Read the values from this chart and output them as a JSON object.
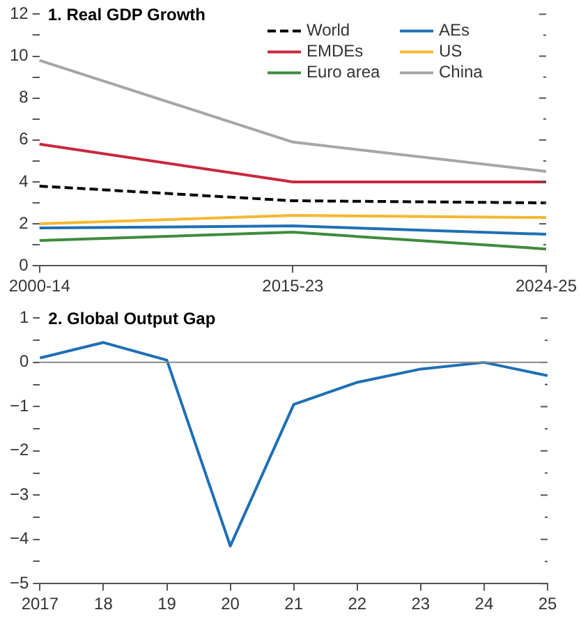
{
  "chart_data": [
    {
      "type": "line",
      "title": "1. Real GDP Growth",
      "categories": [
        "2000-14",
        "2015-23",
        "2024-25"
      ],
      "series": [
        {
          "name": "World",
          "color": "#000000",
          "line_style": "dashed",
          "values": [
            3.8,
            3.1,
            3.0
          ]
        },
        {
          "name": "AEs",
          "color": "#1f6fb5",
          "values": [
            1.8,
            1.9,
            1.5
          ]
        },
        {
          "name": "EMDEs",
          "color": "#c8283c",
          "values": [
            5.8,
            4.0,
            4.0
          ]
        },
        {
          "name": "US",
          "color": "#f5b731",
          "values": [
            2.0,
            2.4,
            2.3
          ]
        },
        {
          "name": "Euro area",
          "color": "#3d8b3d",
          "values": [
            1.2,
            1.6,
            0.8
          ]
        },
        {
          "name": "China",
          "color": "#a6a6a6",
          "values": [
            9.8,
            5.9,
            4.5
          ]
        }
      ],
      "ylim": [
        0,
        12
      ],
      "yticks": [
        0,
        {
          "value": 1,
          "label": null
        },
        2,
        {
          "value": 3,
          "label": null
        },
        4,
        {
          "value": 5,
          "label": null
        },
        6,
        {
          "value": 7,
          "label": null
        },
        8,
        {
          "value": 9,
          "label": null
        },
        10,
        {
          "value": 11,
          "label": null
        },
        12
      ],
      "grid": false,
      "legend": "top right",
      "marker": "none"
    },
    {
      "type": "line",
      "title": "2. Global Output Gap",
      "categories": [
        "2017",
        "18",
        "19",
        "20",
        "21",
        "22",
        "23",
        "24",
        "25"
      ],
      "series": [
        {
          "color": "#1f6fb5",
          "values": [
            0.1,
            0.45,
            0.05,
            -4.15,
            -0.95,
            -0.45,
            -0.15,
            0.0,
            -0.3
          ]
        }
      ],
      "ylim": [
        -5,
        1
      ],
      "yticks": [
        {
          "value": -5,
          "label": "−5"
        },
        {
          "value": -4.5,
          "label": null
        },
        {
          "value": -4,
          "label": "−4"
        },
        {
          "value": -3.5,
          "label": null
        },
        {
          "value": -3,
          "label": "−3"
        },
        {
          "value": -2.5,
          "label": null
        },
        {
          "value": -2,
          "label": "−2"
        },
        {
          "value": -1.5,
          "label": null
        },
        {
          "value": -1,
          "label": "−1"
        },
        {
          "value": -0.5,
          "label": null
        },
        0,
        {
          "value": 0.5,
          "label": null
        },
        1
      ],
      "ref_lines": [
        {
          "axis": "y",
          "value": 0,
          "color": "#888888"
        }
      ],
      "grid": false,
      "marker": "none"
    }
  ]
}
